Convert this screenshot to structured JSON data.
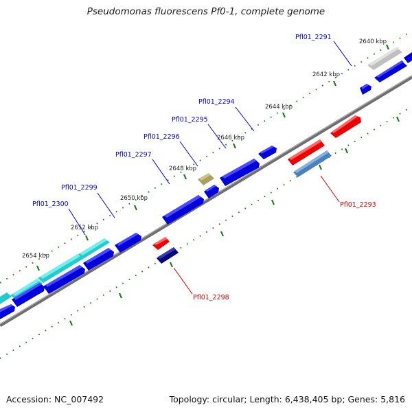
{
  "title": "Pseudomonas fluorescens Pf0-1, complete genome",
  "footer": {
    "accession_label": "Accession:",
    "accession": "NC_007492",
    "topology_label": "Topology:",
    "topology": "circular",
    "length_label": "Length:",
    "length": "6,438,405 bp",
    "genes_label": "Genes:",
    "genes": "5,816"
  },
  "colors": {
    "backbone": "#808080",
    "tick": "#1c7a1c",
    "forward_gene": "#0000ee",
    "reverse_gene": "#ee0000",
    "rna": "#22cccc",
    "pseudo": "#a8a060",
    "steel": "#4a80c0",
    "navy": "#000080",
    "gray_gene": "#c0c0c0",
    "label_forward": "#0000cc",
    "label_reverse": "#cc0000"
  },
  "kbp_labels": [
    "2640 kbp",
    "2642 kbp",
    "2644 kbp",
    "2646 kbp",
    "2648 kbp",
    "2650 kbp",
    "2652 kbp",
    "2654 kbp"
  ],
  "gene_labels": [
    {
      "text": "Pfl01_2291",
      "strand": "forward"
    },
    {
      "text": "Pfl01_2294",
      "strand": "forward"
    },
    {
      "text": "Pfl01_2295",
      "strand": "forward"
    },
    {
      "text": "Pfl01_2296",
      "strand": "forward"
    },
    {
      "text": "Pfl01_2297",
      "strand": "forward"
    },
    {
      "text": "Pfl01_2299",
      "strand": "forward"
    },
    {
      "text": "Pfl01_2300",
      "strand": "forward"
    },
    {
      "text": "Pfl01_2293",
      "strand": "reverse"
    },
    {
      "text": "Pfl01_2298",
      "strand": "reverse"
    }
  ]
}
